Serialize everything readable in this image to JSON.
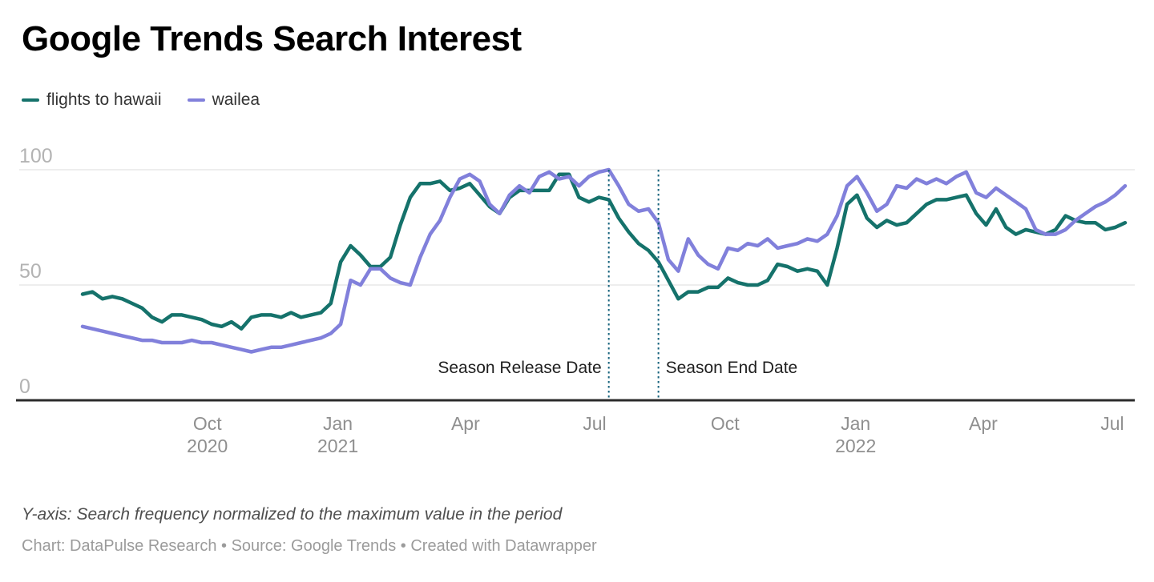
{
  "header": {
    "title": "Google Trends Search Interest"
  },
  "colors": {
    "series_teal": "#15726b",
    "series_purple": "#8180db",
    "grid": "#dddddd",
    "axis_line": "#2b2b2b",
    "y_tick_text": "#b3b3b3",
    "x_tick_text": "#8f8f8f",
    "annotation_line": "#19647e",
    "annotation_text": "#1f1f1f"
  },
  "axes": {
    "y_ticks": [
      100,
      50,
      0
    ],
    "x_ticks": [
      {
        "label": "Oct",
        "year": "2020",
        "week": 12.57
      },
      {
        "label": "Jan",
        "year": "2021",
        "week": 25.71
      },
      {
        "label": "Apr",
        "year": "",
        "week": 38.57
      },
      {
        "label": "Jul",
        "year": "",
        "week": 51.57
      },
      {
        "label": "Oct",
        "year": "",
        "week": 64.71
      },
      {
        "label": "Jan",
        "year": "2022",
        "week": 77.86
      },
      {
        "label": "Apr",
        "year": "",
        "week": 90.71
      },
      {
        "label": "Jul",
        "year": "",
        "week": 103.71
      }
    ]
  },
  "annotations": [
    {
      "label": "Season Release Date",
      "week": 53,
      "align": "right"
    },
    {
      "label": "Season End Date",
      "week": 58,
      "align": "left"
    }
  ],
  "footer": {
    "note": "Y-axis: Search frequency normalized to the maximum value in the period",
    "byline": "Chart: DataPulse Research • Source: Google Trends  • Created with Datawrapper"
  },
  "chart_data": {
    "type": "line",
    "title": "Google Trends Search Interest",
    "x_unit": "weekly samples, Jul 2020 – Jul 2022",
    "ylim": [
      0,
      100
    ],
    "grid": "horizontal",
    "legend_position": "top-left",
    "series": [
      {
        "name": "flights to hawaii",
        "color": "#15726b",
        "values": [
          46,
          47,
          44,
          45,
          44,
          42,
          40,
          36,
          34,
          37,
          37,
          36,
          35,
          33,
          32,
          34,
          31,
          36,
          37,
          37,
          36,
          38,
          36,
          37,
          38,
          42,
          60,
          67,
          63,
          58,
          58,
          62,
          76,
          88,
          94,
          94,
          95,
          91,
          92,
          94,
          89,
          84,
          81,
          88,
          91,
          91,
          91,
          91,
          98,
          98,
          88,
          86,
          88,
          87,
          79,
          73,
          68,
          65,
          60,
          52,
          44,
          47,
          47,
          49,
          49,
          53,
          51,
          50,
          50,
          52,
          59,
          58,
          56,
          57,
          56,
          50,
          66,
          85,
          89,
          79,
          75,
          78,
          76,
          77,
          81,
          85,
          87,
          87,
          88,
          89,
          81,
          76,
          83,
          75,
          72,
          74,
          73,
          72,
          74,
          80,
          78,
          77,
          77,
          74,
          75,
          77
        ]
      },
      {
        "name": "wailea",
        "color": "#8180db",
        "values": [
          32,
          31,
          30,
          29,
          28,
          27,
          26,
          26,
          25,
          25,
          25,
          26,
          25,
          25,
          24,
          23,
          22,
          21,
          22,
          23,
          23,
          24,
          25,
          26,
          27,
          29,
          33,
          52,
          50,
          57,
          57,
          53,
          51,
          50,
          62,
          72,
          78,
          88,
          96,
          98,
          95,
          85,
          81,
          89,
          93,
          90,
          97,
          99,
          96,
          97,
          93,
          97,
          99,
          100,
          93,
          85,
          82,
          83,
          77,
          61,
          56,
          70,
          63,
          59,
          57,
          66,
          65,
          68,
          67,
          70,
          66,
          67,
          68,
          70,
          69,
          72,
          80,
          93,
          97,
          90,
          82,
          85,
          93,
          92,
          96,
          94,
          96,
          94,
          97,
          99,
          90,
          88,
          92,
          89,
          86,
          83,
          74,
          72,
          72,
          74,
          78,
          81,
          84,
          86,
          89,
          93
        ]
      }
    ]
  }
}
